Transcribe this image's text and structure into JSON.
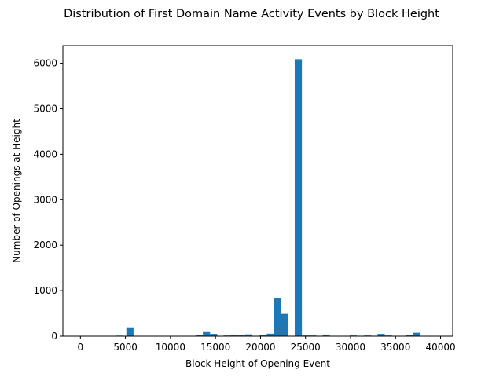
{
  "chart_data": {
    "type": "bar",
    "title": "Distribution of First Domain Name Activity Events by Block Height",
    "xlabel": "Block Height of Opening Event",
    "ylabel": "Number of Openings at Height",
    "xlim": [
      -1950,
      41350
    ],
    "ylim": [
      0,
      6390
    ],
    "xticks": [
      0,
      5000,
      10000,
      15000,
      20000,
      25000,
      30000,
      35000,
      40000
    ],
    "yticks": [
      0,
      1000,
      2000,
      3000,
      4000,
      5000,
      6000
    ],
    "bin_width": 800,
    "bar_color": "#1f77b4",
    "grid": false,
    "legend": "none",
    "bins": [
      {
        "x0": 3900,
        "value": 12
      },
      {
        "x0": 5100,
        "value": 195
      },
      {
        "x0": 12800,
        "value": 30
      },
      {
        "x0": 13600,
        "value": 90
      },
      {
        "x0": 14400,
        "value": 50
      },
      {
        "x0": 15900,
        "value": 15
      },
      {
        "x0": 16700,
        "value": 35
      },
      {
        "x0": 17500,
        "value": 20
      },
      {
        "x0": 18300,
        "value": 40
      },
      {
        "x0": 19900,
        "value": 18
      },
      {
        "x0": 20700,
        "value": 55
      },
      {
        "x0": 21500,
        "value": 835
      },
      {
        "x0": 22300,
        "value": 490
      },
      {
        "x0": 23800,
        "value": 6090
      },
      {
        "x0": 24600,
        "value": 15
      },
      {
        "x0": 25400,
        "value": 15
      },
      {
        "x0": 26900,
        "value": 35
      },
      {
        "x0": 29900,
        "value": 15
      },
      {
        "x0": 31500,
        "value": 15
      },
      {
        "x0": 33000,
        "value": 50
      },
      {
        "x0": 33800,
        "value": 15
      },
      {
        "x0": 36100,
        "value": 18
      },
      {
        "x0": 36900,
        "value": 75
      }
    ]
  }
}
